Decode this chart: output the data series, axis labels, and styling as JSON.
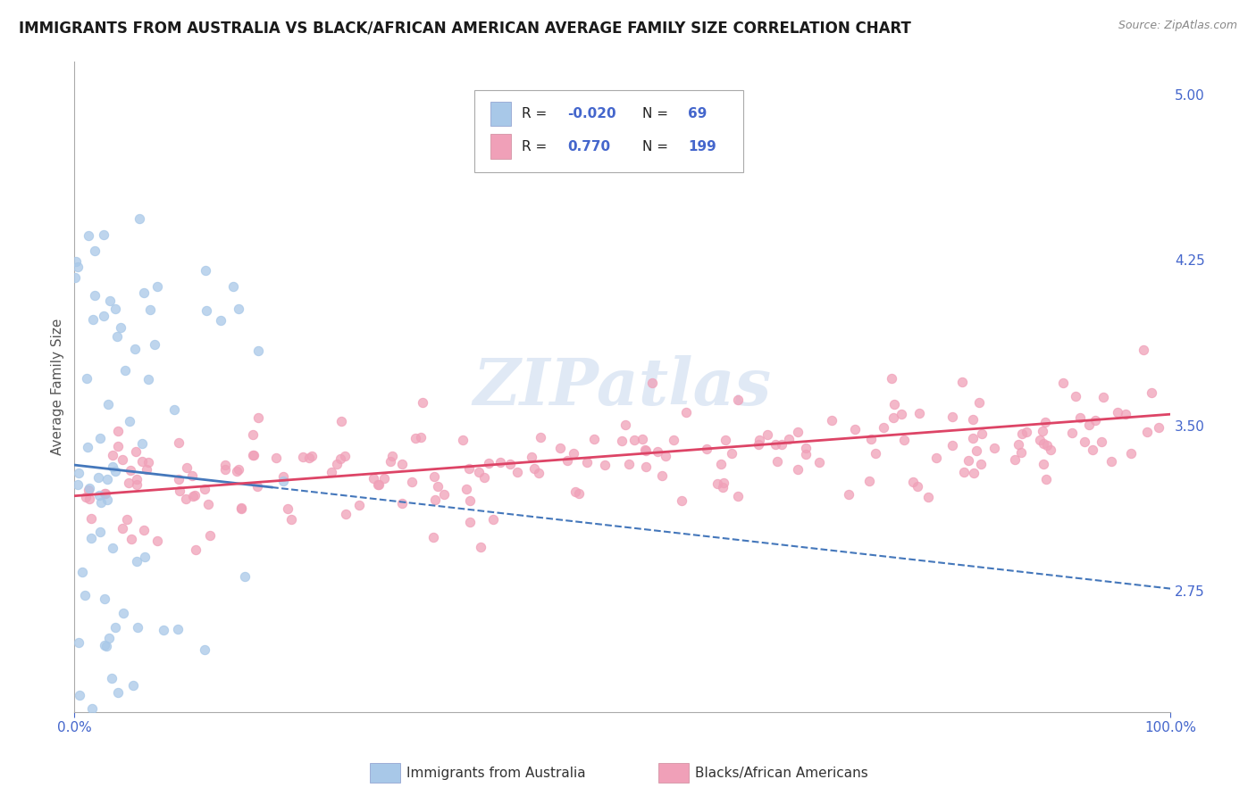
{
  "title": "IMMIGRANTS FROM AUSTRALIA VS BLACK/AFRICAN AMERICAN AVERAGE FAMILY SIZE CORRELATION CHART",
  "source": "Source: ZipAtlas.com",
  "ylabel": "Average Family Size",
  "xmin": 0.0,
  "xmax": 100.0,
  "ymin": 2.2,
  "ymax": 5.15,
  "yticks": [
    2.75,
    3.5,
    4.25,
    5.0
  ],
  "xticks": [
    0.0,
    100.0
  ],
  "xticklabels": [
    "0.0%",
    "100.0%"
  ],
  "blue_R": -0.02,
  "blue_N": 69,
  "pink_R": 0.77,
  "pink_N": 199,
  "blue_color": "#a8c8e8",
  "pink_color": "#f0a0b8",
  "blue_line_color": "#4477bb",
  "pink_line_color": "#dd4466",
  "legend_label_blue": "Immigrants from Australia",
  "legend_label_pink": "Blacks/African Americans",
  "title_fontsize": 12,
  "axis_label_color": "#4466cc",
  "tick_color": "#4466cc",
  "background_color": "#ffffff",
  "grid_color": "#bbbbbb",
  "watermark": "ZIPatlas",
  "blue_trend_start_y": 3.32,
  "blue_trend_end_y": 2.76,
  "pink_trend_start_y": 3.18,
  "pink_trend_end_y": 3.55
}
